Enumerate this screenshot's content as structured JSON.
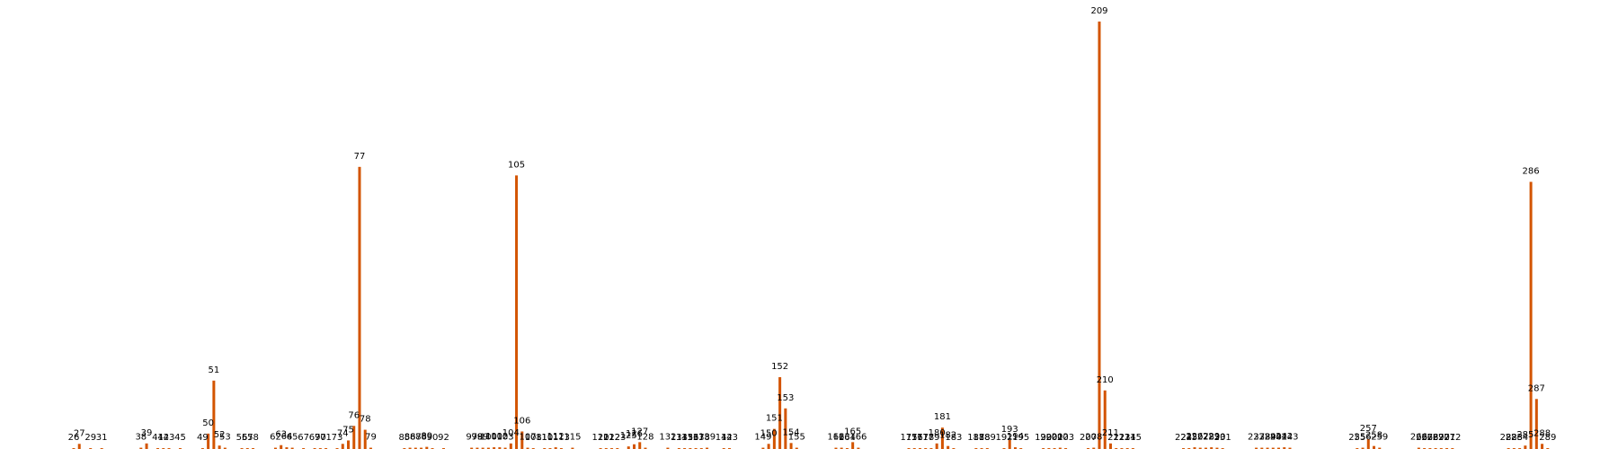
{
  "chart_data": {
    "type": "bar",
    "title": "",
    "xlabel": "",
    "ylabel": "",
    "bar_color": "#d35400",
    "grid": false,
    "axes_visible": false,
    "ylim": [
      0,
      100
    ],
    "bars": [
      {
        "x": 26,
        "label": "26",
        "value": 0.2
      },
      {
        "x": 27,
        "label": "27",
        "value": 1.2
      },
      {
        "x": 29,
        "label": "29",
        "value": 0.2
      },
      {
        "x": 31,
        "label": "31",
        "value": 0.2
      },
      {
        "x": 38,
        "label": "38",
        "value": 0.3
      },
      {
        "x": 39,
        "label": "39",
        "value": 1.3
      },
      {
        "x": 41,
        "label": "41",
        "value": 0.2
      },
      {
        "x": 42,
        "label": "42",
        "value": 0.2
      },
      {
        "x": 43,
        "label": "43",
        "value": 0.2
      },
      {
        "x": 45,
        "label": "45",
        "value": 0.2
      },
      {
        "x": 49,
        "label": "49",
        "value": 0.2
      },
      {
        "x": 50,
        "label": "50",
        "value": 3.6
      },
      {
        "x": 51,
        "label": "51",
        "value": 16.0
      },
      {
        "x": 52,
        "label": "52",
        "value": 0.8
      },
      {
        "x": 53,
        "label": "53",
        "value": 0.3
      },
      {
        "x": 56,
        "label": "56",
        "value": 0.2
      },
      {
        "x": 57,
        "label": "57",
        "value": 0.2
      },
      {
        "x": 58,
        "label": "58",
        "value": 0.2
      },
      {
        "x": 62,
        "label": "62",
        "value": 0.3
      },
      {
        "x": 63,
        "label": "63",
        "value": 0.9
      },
      {
        "x": 64,
        "label": "64",
        "value": 0.4
      },
      {
        "x": 65,
        "label": "65",
        "value": 0.3
      },
      {
        "x": 67,
        "label": "67",
        "value": 0.2
      },
      {
        "x": 69,
        "label": "69",
        "value": 0.2
      },
      {
        "x": 70,
        "label": "70",
        "value": 0.2
      },
      {
        "x": 71,
        "label": "71",
        "value": 0.2
      },
      {
        "x": 73,
        "label": "73",
        "value": 0.2
      },
      {
        "x": 74,
        "label": "74",
        "value": 1.2
      },
      {
        "x": 75,
        "label": "75",
        "value": 2.0
      },
      {
        "x": 76,
        "label": "76",
        "value": 5.4
      },
      {
        "x": 77,
        "label": "77",
        "value": 66.0
      },
      {
        "x": 78,
        "label": "78",
        "value": 4.5
      },
      {
        "x": 79,
        "label": "79",
        "value": 0.3
      },
      {
        "x": 85,
        "label": "85",
        "value": 0.2
      },
      {
        "x": 86,
        "label": "86",
        "value": 0.3
      },
      {
        "x": 87,
        "label": "87",
        "value": 0.3
      },
      {
        "x": 88,
        "label": "88",
        "value": 0.3
      },
      {
        "x": 89,
        "label": "89",
        "value": 0.5
      },
      {
        "x": 90,
        "label": "90",
        "value": 0.2
      },
      {
        "x": 92,
        "label": "92",
        "value": 0.2
      },
      {
        "x": 97,
        "label": "97",
        "value": 0.3
      },
      {
        "x": 98,
        "label": "98",
        "value": 0.3
      },
      {
        "x": 99,
        "label": "99",
        "value": 0.3
      },
      {
        "x": 100,
        "label": "100",
        "value": 0.3
      },
      {
        "x": 101,
        "label": "101",
        "value": 0.4
      },
      {
        "x": 102,
        "label": "102",
        "value": 0.4
      },
      {
        "x": 103,
        "label": "103",
        "value": 0.3
      },
      {
        "x": 104,
        "label": "104",
        "value": 1.3
      },
      {
        "x": 105,
        "label": "105",
        "value": 64.0
      },
      {
        "x": 106,
        "label": "106",
        "value": 4.1
      },
      {
        "x": 107,
        "label": "107",
        "value": 0.3
      },
      {
        "x": 108,
        "label": "108",
        "value": 0.2
      },
      {
        "x": 110,
        "label": "110",
        "value": 0.2
      },
      {
        "x": 111,
        "label": "111",
        "value": 0.2
      },
      {
        "x": 112,
        "label": "112",
        "value": 0.4
      },
      {
        "x": 113,
        "label": "113",
        "value": 0.2
      },
      {
        "x": 115,
        "label": "115",
        "value": 0.3
      },
      {
        "x": 120,
        "label": "120",
        "value": 0.2
      },
      {
        "x": 121,
        "label": "121",
        "value": 0.2
      },
      {
        "x": 122,
        "label": "122",
        "value": 0.2
      },
      {
        "x": 123,
        "label": "123",
        "value": 0.2
      },
      {
        "x": 125,
        "label": "125",
        "value": 0.6
      },
      {
        "x": 126,
        "label": "126",
        "value": 1.1
      },
      {
        "x": 127,
        "label": "127",
        "value": 1.6
      },
      {
        "x": 128,
        "label": "128",
        "value": 0.3
      },
      {
        "x": 132,
        "label": "132",
        "value": 0.3
      },
      {
        "x": 134,
        "label": "134",
        "value": 0.2
      },
      {
        "x": 135,
        "label": "135",
        "value": 0.2
      },
      {
        "x": 136,
        "label": "136",
        "value": 0.2
      },
      {
        "x": 137,
        "label": "137",
        "value": 0.2
      },
      {
        "x": 138,
        "label": "138",
        "value": 0.2
      },
      {
        "x": 139,
        "label": "139",
        "value": 0.3
      },
      {
        "x": 142,
        "label": "142",
        "value": 0.2
      },
      {
        "x": 143,
        "label": "143",
        "value": 0.2
      },
      {
        "x": 149,
        "label": "149",
        "value": 0.3
      },
      {
        "x": 150,
        "label": "150",
        "value": 1.2
      },
      {
        "x": 151,
        "label": "151",
        "value": 4.7
      },
      {
        "x": 152,
        "label": "152",
        "value": 16.8
      },
      {
        "x": 153,
        "label": "153",
        "value": 9.5
      },
      {
        "x": 154,
        "label": "154",
        "value": 1.4
      },
      {
        "x": 155,
        "label": "155",
        "value": 0.3
      },
      {
        "x": 162,
        "label": "162",
        "value": 0.3
      },
      {
        "x": 163,
        "label": "163",
        "value": 0.3
      },
      {
        "x": 164,
        "label": "164",
        "value": 0.2
      },
      {
        "x": 165,
        "label": "165",
        "value": 1.6
      },
      {
        "x": 166,
        "label": "166",
        "value": 0.3
      },
      {
        "x": 175,
        "label": "175",
        "value": 0.2
      },
      {
        "x": 176,
        "label": "176",
        "value": 0.2
      },
      {
        "x": 177,
        "label": "177",
        "value": 0.2
      },
      {
        "x": 178,
        "label": "178",
        "value": 0.2
      },
      {
        "x": 179,
        "label": "179",
        "value": 0.2
      },
      {
        "x": 180,
        "label": "180",
        "value": 1.3
      },
      {
        "x": 181,
        "label": "181",
        "value": 5.0
      },
      {
        "x": 182,
        "label": "182",
        "value": 0.7
      },
      {
        "x": 183,
        "label": "183",
        "value": 0.2
      },
      {
        "x": 187,
        "label": "187",
        "value": 0.2
      },
      {
        "x": 188,
        "label": "188",
        "value": 0.2
      },
      {
        "x": 189,
        "label": "189",
        "value": 0.2
      },
      {
        "x": 192,
        "label": "192",
        "value": 0.2
      },
      {
        "x": 193,
        "label": "193",
        "value": 2.1
      },
      {
        "x": 194,
        "label": "194",
        "value": 0.4
      },
      {
        "x": 195,
        "label": "195",
        "value": 0.2
      },
      {
        "x": 199,
        "label": "199",
        "value": 0.2
      },
      {
        "x": 200,
        "label": "200",
        "value": 0.2
      },
      {
        "x": 201,
        "label": "201",
        "value": 0.2
      },
      {
        "x": 202,
        "label": "202",
        "value": 0.3
      },
      {
        "x": 203,
        "label": "203",
        "value": 0.2
      },
      {
        "x": 207,
        "label": "207",
        "value": 0.2
      },
      {
        "x": 208,
        "label": "208",
        "value": 0.3
      },
      {
        "x": 209,
        "label": "209",
        "value": 100.0
      },
      {
        "x": 210,
        "label": "210",
        "value": 13.7
      },
      {
        "x": 211,
        "label": "211",
        "value": 1.3
      },
      {
        "x": 212,
        "label": "212",
        "value": 0.2
      },
      {
        "x": 213,
        "label": "213",
        "value": 0.2
      },
      {
        "x": 214,
        "label": "214",
        "value": 0.2
      },
      {
        "x": 215,
        "label": "215",
        "value": 0.2
      },
      {
        "x": 224,
        "label": "224",
        "value": 0.2
      },
      {
        "x": 225,
        "label": "225",
        "value": 0.2
      },
      {
        "x": 226,
        "label": "226",
        "value": 0.4
      },
      {
        "x": 227,
        "label": "227",
        "value": 0.3
      },
      {
        "x": 228,
        "label": "228",
        "value": 0.3
      },
      {
        "x": 229,
        "label": "229",
        "value": 0.4
      },
      {
        "x": 230,
        "label": "230",
        "value": 0.3
      },
      {
        "x": 231,
        "label": "231",
        "value": 0.2
      },
      {
        "x": 237,
        "label": "237",
        "value": 0.3
      },
      {
        "x": 238,
        "label": "238",
        "value": 0.3
      },
      {
        "x": 239,
        "label": "239",
        "value": 0.3
      },
      {
        "x": 240,
        "label": "240",
        "value": 0.3
      },
      {
        "x": 241,
        "label": "241",
        "value": 0.3
      },
      {
        "x": 242,
        "label": "242",
        "value": 0.4
      },
      {
        "x": 243,
        "label": "243",
        "value": 0.3
      },
      {
        "x": 255,
        "label": "255",
        "value": 0.2
      },
      {
        "x": 256,
        "label": "256",
        "value": 0.3
      },
      {
        "x": 257,
        "label": "257",
        "value": 2.3
      },
      {
        "x": 258,
        "label": "258",
        "value": 0.7
      },
      {
        "x": 259,
        "label": "259",
        "value": 0.3
      },
      {
        "x": 266,
        "label": "266",
        "value": 0.3
      },
      {
        "x": 267,
        "label": "267",
        "value": 0.2
      },
      {
        "x": 268,
        "label": "268",
        "value": 0.2
      },
      {
        "x": 269,
        "label": "269",
        "value": 0.2
      },
      {
        "x": 270,
        "label": "270",
        "value": 0.2
      },
      {
        "x": 271,
        "label": "271",
        "value": 0.2
      },
      {
        "x": 272,
        "label": "272",
        "value": 0.2
      },
      {
        "x": 282,
        "label": "282",
        "value": 0.2
      },
      {
        "x": 283,
        "label": "283",
        "value": 0.2
      },
      {
        "x": 284,
        "label": "284",
        "value": 0.2
      },
      {
        "x": 285,
        "label": "285",
        "value": 0.8
      },
      {
        "x": 286,
        "label": "286",
        "value": 62.5
      },
      {
        "x": 287,
        "label": "287",
        "value": 11.7
      },
      {
        "x": 288,
        "label": "288",
        "value": 1.2
      },
      {
        "x": 289,
        "label": "289",
        "value": 0.2
      }
    ]
  }
}
